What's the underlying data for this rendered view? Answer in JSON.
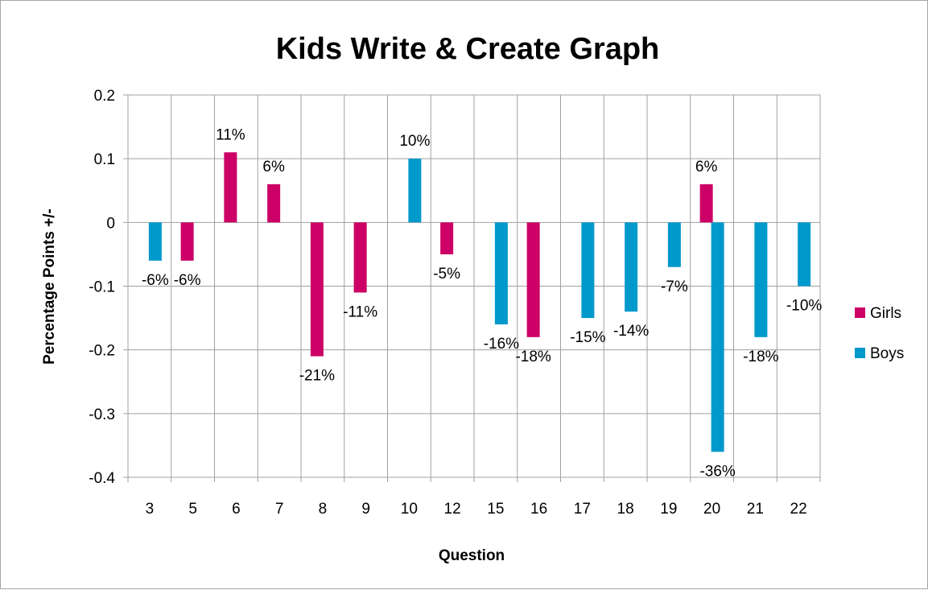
{
  "chart_data": {
    "type": "bar",
    "title": "Kids Write & Create Graph",
    "xlabel": "Question",
    "ylabel": "Percentage Points +/-",
    "ylim": [
      -0.4,
      0.2
    ],
    "yticks": [
      0.2,
      0.1,
      0,
      -0.1,
      -0.2,
      -0.3,
      -0.4
    ],
    "ytick_labels": [
      "0.2",
      "0.1",
      "0",
      "-0.1",
      "-0.2",
      "-0.3",
      "-0.4"
    ],
    "grid": true,
    "legend_position": "right",
    "categories": [
      "3",
      "5",
      "6",
      "7",
      "8",
      "9",
      "10",
      "12",
      "15",
      "16",
      "17",
      "18",
      "19",
      "20",
      "21",
      "22"
    ],
    "series": [
      {
        "name": "Girls",
        "color": "#cc0066",
        "values": [
          null,
          -0.06,
          0.11,
          0.06,
          -0.21,
          -0.11,
          null,
          -0.05,
          null,
          -0.18,
          null,
          null,
          null,
          0.06,
          null,
          null
        ],
        "labels": [
          null,
          "-6%",
          "11%",
          "6%",
          "-21%",
          "-11%",
          null,
          "-5%",
          null,
          "-18%",
          null,
          null,
          null,
          "6%",
          null,
          null
        ]
      },
      {
        "name": "Boys",
        "color": "#0099cc",
        "values": [
          -0.06,
          null,
          null,
          null,
          null,
          null,
          0.1,
          null,
          -0.16,
          null,
          -0.15,
          -0.14,
          -0.07,
          -0.36,
          -0.18,
          -0.1
        ],
        "labels": [
          "-6%",
          null,
          null,
          null,
          null,
          null,
          "10%",
          null,
          "-16%",
          null,
          "-15%",
          "-14%",
          "-7%",
          "-36%",
          "-18%",
          "-10%"
        ]
      }
    ]
  }
}
